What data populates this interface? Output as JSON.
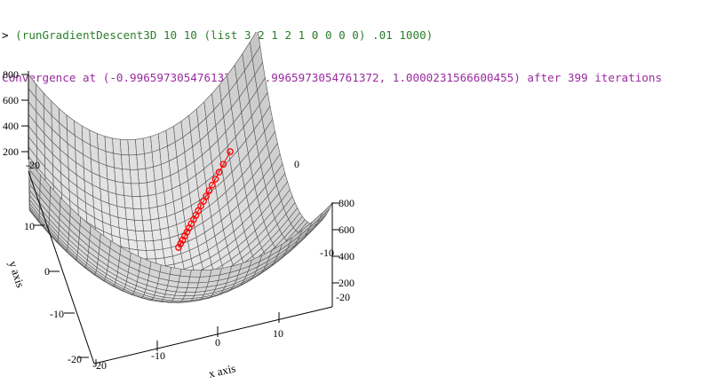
{
  "repl": {
    "prompt": "> ",
    "command": "(runGradientDescent3D 10 10 (list 3 2 1 2 1 0 0 0 0) .01 1000)",
    "result": "Convergence at (-0.9965973054761372, -0.9965973054761372, 1.0000231566600455) after 399 iterations"
  },
  "plot": {
    "x_axis_label": "x axis",
    "y_axis_label": "y axis",
    "x_ticks": [
      "-20",
      "-10",
      "0",
      "10"
    ],
    "y_ticks": [
      "-20",
      "-10",
      "0",
      "10"
    ],
    "z_ticks_left": [
      "800",
      "600",
      "400",
      "200"
    ],
    "z_ticks_right": [
      "800",
      "600",
      "400",
      "200"
    ],
    "corner_labels": [
      "-20",
      "-10",
      "0",
      "-20"
    ],
    "surface_color": "#e9e9e9",
    "mesh_color": "#555555",
    "path_color": "#ff0000",
    "path_points": 19
  }
}
